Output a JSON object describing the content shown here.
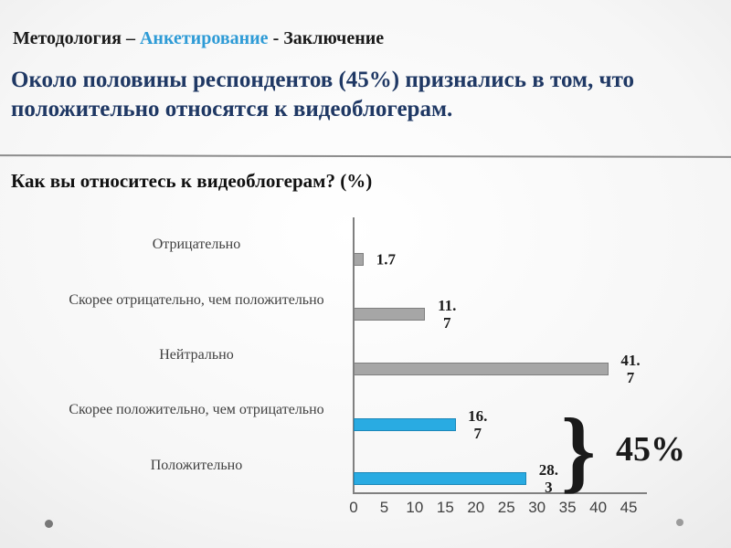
{
  "slide": {
    "breadcrumb": {
      "part1": "Методология – ",
      "highlight": "Анкетирование",
      "part2": " - Заключение"
    },
    "title": "Около половины респондентов (45%) признались в том, что положительно относятся к видеоблогерам.",
    "chart_heading": "Как вы относитесь к видеоблогерам? (%)",
    "annotation": {
      "brace": "}",
      "label": "45%"
    }
  },
  "chart_data": {
    "type": "bar",
    "orientation": "horizontal",
    "title": "Как вы относитесь к видеоблогерам? (%)",
    "categories": [
      "Отрицательно",
      "Скорее отрицательно, чем положительно",
      "Нейтрально",
      "Скорее положительно, чем отрицательно",
      "Положительно"
    ],
    "values": [
      1.7,
      11.7,
      41.7,
      16.7,
      28.3
    ],
    "data_labels": [
      [
        "1.7"
      ],
      [
        "11.",
        "7"
      ],
      [
        "41.",
        "7"
      ],
      [
        "16.",
        "7"
      ],
      [
        "28.",
        "3"
      ]
    ],
    "bar_colors": [
      "#A6A6A6",
      "#A6A6A6",
      "#A6A6A6",
      "#29ABE2",
      "#29ABE2"
    ],
    "bar_border_colors": [
      "#7F7F7F",
      "#7F7F7F",
      "#7F7F7F",
      "#1B87B8",
      "#1B87B8"
    ],
    "x_ticks": [
      "0",
      "5",
      "10",
      "15",
      "20",
      "25",
      "30",
      "35",
      "40",
      "45"
    ],
    "xlim": [
      0,
      45
    ],
    "grid": false,
    "legend": "none",
    "annotation": {
      "text": "45%",
      "covers": [
        "Скорее положительно, чем отрицательно",
        "Положительно"
      ]
    }
  },
  "colors": {
    "accent_blue": "#29ABE2",
    "bar_gray": "#A6A6A6",
    "title_navy": "#1F3864",
    "breadcrumb_highlight": "#2E9BD6",
    "text_black": "#1A1A1A",
    "axis_gray": "#808080"
  }
}
